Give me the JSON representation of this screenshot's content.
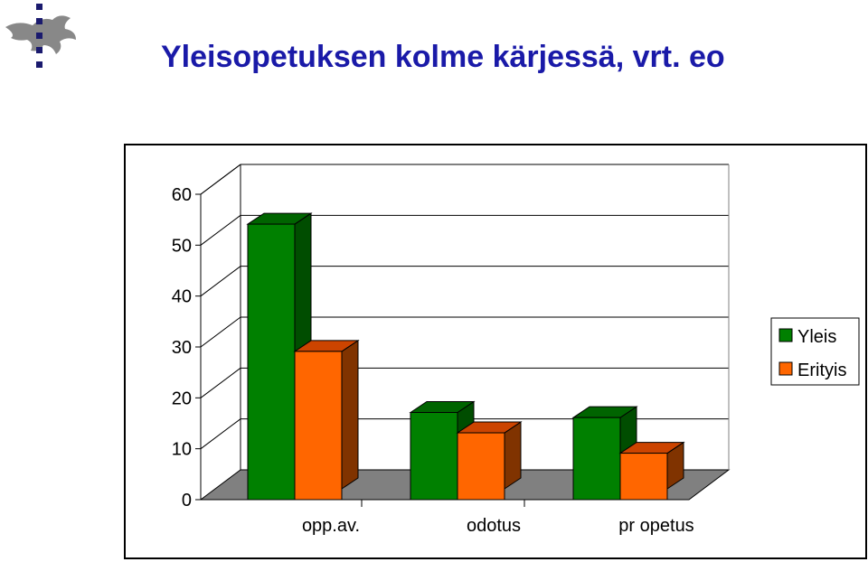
{
  "title": "Yleisopetuksen kolme kärjessä, vrt. eo",
  "colors": {
    "title": "#1a1aa8",
    "logo": "#1a1a6e",
    "grid": "#000000",
    "floor": "#808080"
  },
  "chart_data": {
    "type": "bar",
    "title": "",
    "xlabel": "",
    "ylabel": "",
    "categories": [
      "opp.av.",
      "odotus",
      "pr opetus"
    ],
    "series": [
      {
        "name": "Yleis",
        "values": [
          52,
          15,
          14
        ],
        "color": "#008000",
        "top": "#006400",
        "side": "#004d00"
      },
      {
        "name": "Erityis",
        "values": [
          27,
          11,
          7
        ],
        "color": "#ff6600",
        "top": "#cc4400",
        "side": "#803300"
      }
    ],
    "ylim": [
      0,
      60
    ],
    "yticks": [
      "0",
      "10",
      "20",
      "30",
      "40",
      "50",
      "60"
    ],
    "grid": true,
    "legend": "right"
  }
}
